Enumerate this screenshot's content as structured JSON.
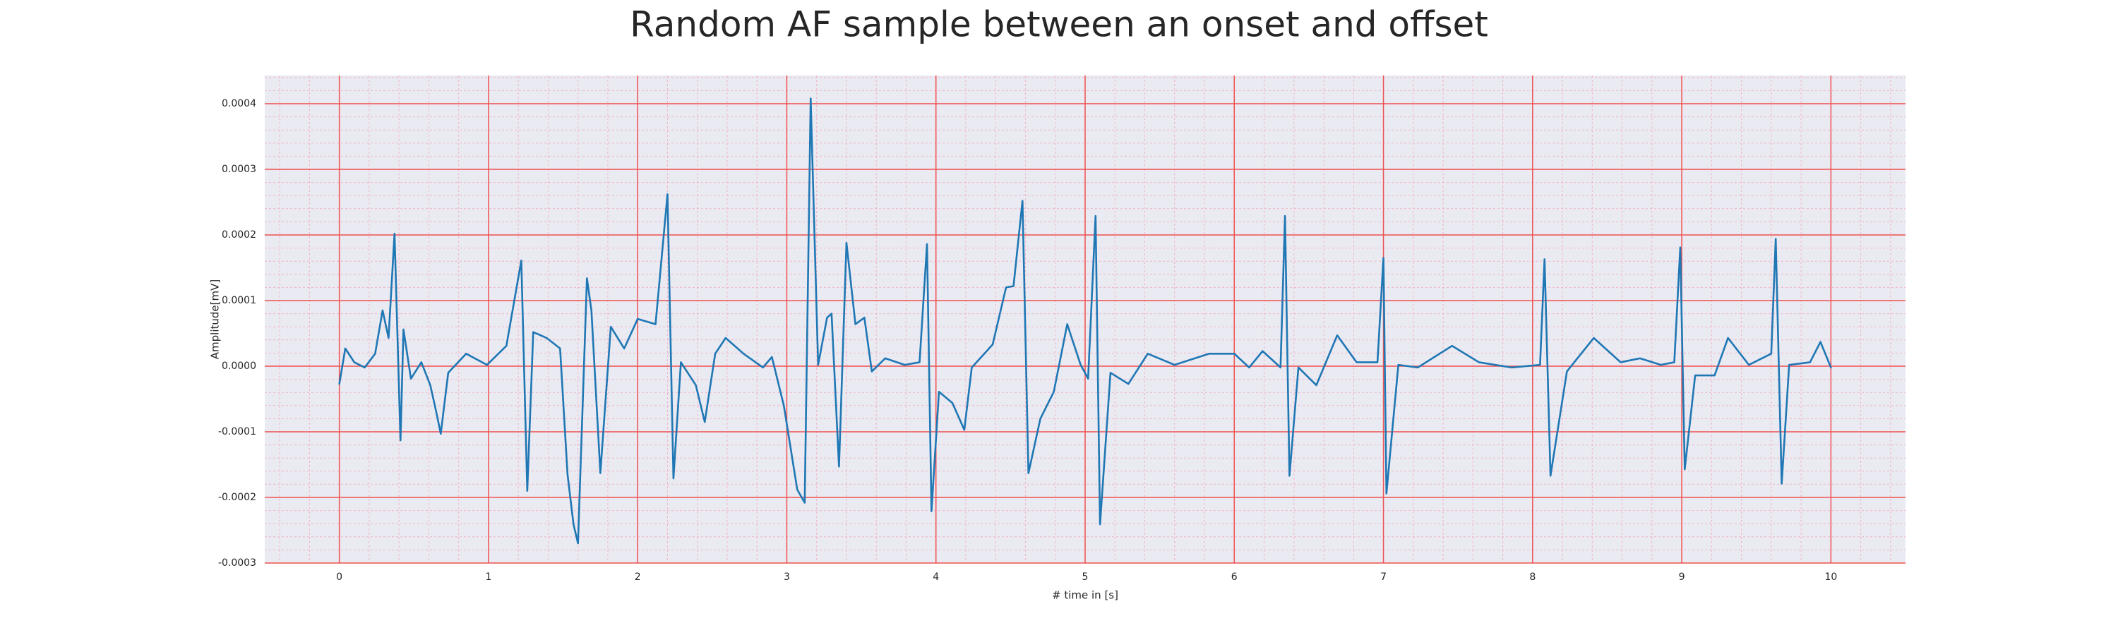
{
  "chart_data": {
    "type": "line",
    "title": "Random AF sample between an onset and offset",
    "xlabel": "# time in [s]",
    "ylabel": "Amplitude[mV]",
    "color": "#1f77b4",
    "grid": true,
    "xlim": [
      -0.5,
      10.5
    ],
    "ylim": [
      -0.0003,
      0.000443
    ],
    "xticks": [
      0,
      1,
      2,
      3,
      4,
      5,
      6,
      7,
      8,
      9,
      10
    ],
    "yticks": [
      -0.0003,
      -0.0002,
      -0.0001,
      {
        "value": 0,
        "label": "0.0000"
      },
      0.0001,
      0.0002,
      0.0003,
      0.0004
    ],
    "xminorticks": [
      -0.4,
      -0.2,
      0.2,
      0.4,
      0.6,
      0.8,
      1.2,
      1.4,
      1.6,
      1.8,
      2.2,
      2.4,
      2.6,
      2.8,
      3.2,
      3.4,
      3.6,
      3.8,
      4.2,
      4.4,
      4.6,
      4.8,
      5.2,
      5.4,
      5.6,
      5.8,
      6.2,
      6.4,
      6.6,
      6.8,
      7.2,
      7.4,
      7.6,
      7.8,
      8.2,
      8.4,
      8.6,
      8.8,
      9.2,
      9.4,
      9.6,
      9.8,
      10.2,
      10.4
    ],
    "yminorticks": [
      -0.00028,
      -0.00026,
      -0.00024,
      -0.00022,
      -0.00018,
      -0.00016,
      -0.00014,
      -0.00012,
      -8e-05,
      -6e-05,
      -4e-05,
      -2e-05,
      2e-05,
      4e-05,
      6e-05,
      8e-05,
      0.00012,
      0.00014,
      0.00016,
      0.00018,
      0.00022,
      0.00024,
      0.00026,
      0.00028,
      0.00032,
      0.00034,
      0.00036,
      0.00038,
      0.00042,
      0.00044
    ],
    "x": [
      0,
      0.04,
      0.1,
      0.17,
      0.24,
      0.29,
      0.33,
      0.37,
      0.41,
      0.43,
      0.48,
      0.55,
      0.61,
      0.65,
      0.68,
      0.73,
      0.85,
      0.99,
      1.12,
      1.22,
      1.26,
      1.3,
      1.39,
      1.48,
      1.53,
      1.57,
      1.6,
      1.66,
      1.69,
      1.75,
      1.82,
      1.91,
      2.0,
      2.12,
      2.2,
      2.24,
      2.29,
      2.39,
      2.45,
      2.52,
      2.59,
      2.71,
      2.84,
      2.9,
      2.98,
      3.07,
      3.12,
      3.16,
      3.21,
      3.27,
      3.3,
      3.35,
      3.4,
      3.46,
      3.52,
      3.57,
      3.66,
      3.79,
      3.89,
      3.94,
      3.97,
      4.02,
      4.11,
      4.19,
      4.24,
      4.38,
      4.47,
      4.52,
      4.58,
      4.62,
      4.7,
      4.79,
      4.88,
      4.97,
      5.02,
      5.07,
      5.1,
      5.17,
      5.29,
      5.42,
      5.6,
      5.83,
      6.0,
      6.1,
      6.19,
      6.31,
      6.34,
      6.37,
      6.43,
      6.55,
      6.69,
      6.82,
      6.96,
      7.0,
      7.02,
      7.1,
      7.23,
      7.46,
      7.64,
      7.86,
      8.05,
      8.08,
      8.12,
      8.23,
      8.41,
      8.59,
      8.72,
      8.86,
      8.95,
      8.99,
      9.02,
      9.09,
      9.22,
      9.31,
      9.45,
      9.6,
      9.63,
      9.67,
      9.72,
      9.86,
      9.93,
      10.0
    ],
    "values": [
      -2.7e-05,
      2.7e-05,
      6e-06,
      -2e-06,
      1.9e-05,
      8.5e-05,
      4.3e-05,
      0.000202,
      -0.000113,
      5.6e-05,
      -1.9e-05,
      6e-06,
      -2.9e-05,
      -7e-05,
      -0.000103,
      -1e-05,
      1.9e-05,
      2e-06,
      3.1e-05,
      0.000161,
      -0.00019,
      5.2e-05,
      4.3e-05,
      2.7e-05,
      -0.000165,
      -0.000241,
      -0.00027,
      0.000134,
      8.5e-05,
      -0.000163,
      6e-05,
      2.7e-05,
      7.2e-05,
      6.4e-05,
      0.000262,
      -0.000171,
      6e-06,
      -2.9e-05,
      -8.5e-05,
      1.9e-05,
      4.3e-05,
      1.9e-05,
      -2e-06,
      1.4e-05,
      -6e-05,
      -0.000188,
      -0.000208,
      0.000408,
      2e-06,
      7.4e-05,
      8e-05,
      -0.000153,
      0.000188,
      6.4e-05,
      7.4e-05,
      -8e-06,
      1.2e-05,
      2e-06,
      6e-06,
      0.000186,
      -0.000221,
      -3.9e-05,
      -5.6e-05,
      -9.7e-05,
      -2e-06,
      3.3e-05,
      0.00012,
      0.000122,
      0.000252,
      -0.000163,
      -8e-05,
      -3.9e-05,
      6.4e-05,
      2e-06,
      -1.9e-05,
      0.000229,
      -0.000241,
      -1e-05,
      -2.7e-05,
      1.9e-05,
      2e-06,
      1.9e-05,
      1.9e-05,
      -2e-06,
      2.3e-05,
      -2e-06,
      0.000229,
      -0.000167,
      -2e-06,
      -2.9e-05,
      4.7e-05,
      6e-06,
      6e-06,
      0.000165,
      -0.000194,
      2e-06,
      -2e-06,
      3.1e-05,
      6e-06,
      -2e-06,
      2e-06,
      0.000163,
      -0.000167,
      -8e-06,
      4.3e-05,
      6e-06,
      1.2e-05,
      2e-06,
      6e-06,
      0.000181,
      -0.000157,
      -1.4e-05,
      -1.4e-05,
      4.3e-05,
      2e-06,
      1.9e-05,
      0.000194,
      -0.000179,
      2e-06,
      6e-06,
      3.7e-05,
      -2e-06
    ]
  }
}
